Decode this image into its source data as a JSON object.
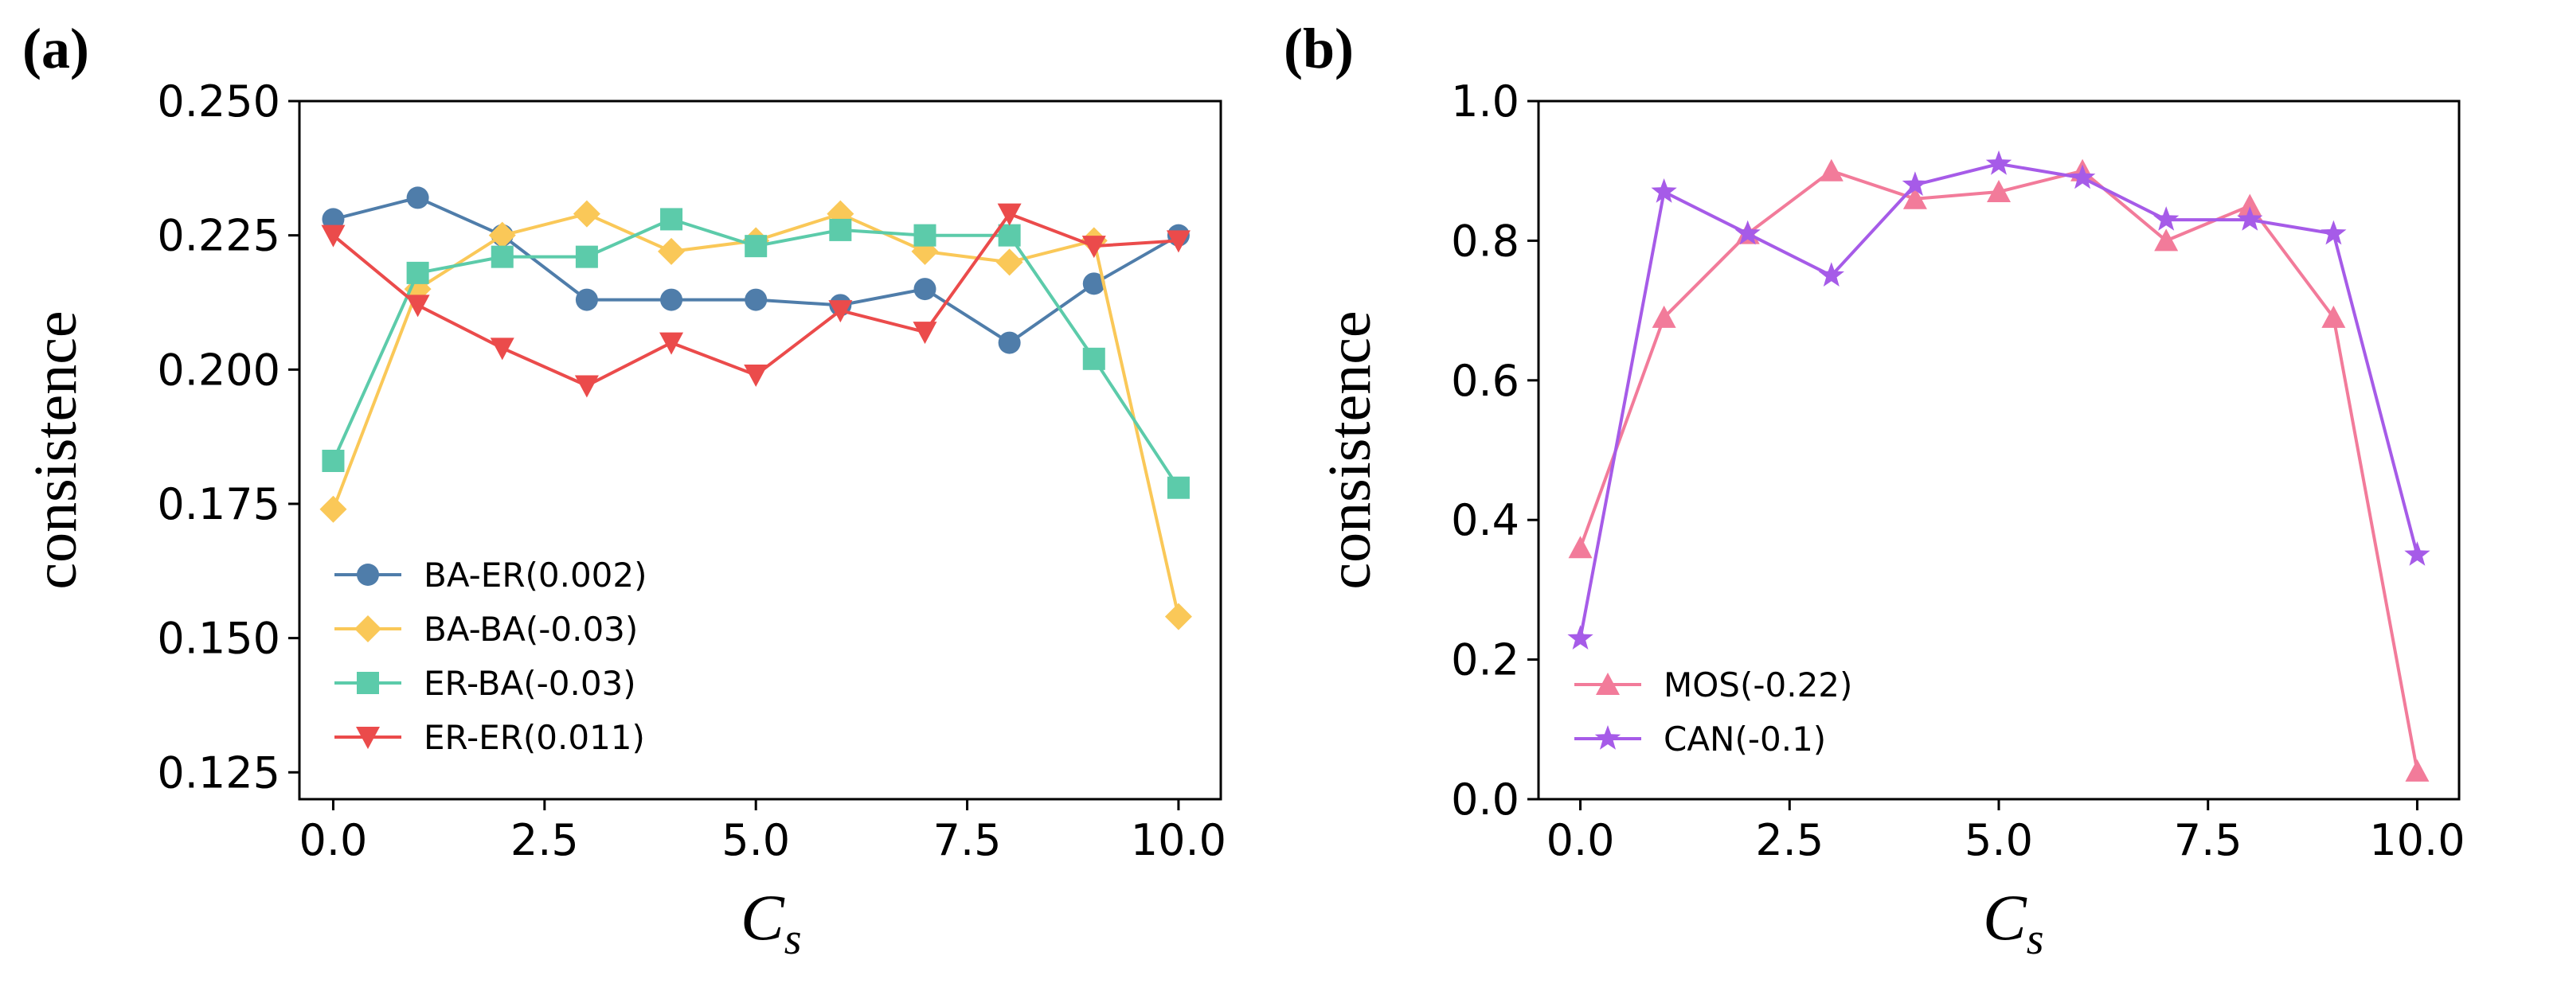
{
  "chart_data": [
    {
      "panel_label": "(a)",
      "type": "line",
      "ylabel": "consistence",
      "xlabel_main": "C",
      "xlabel_sub": "s",
      "xlim": [
        -0.4,
        10.5
      ],
      "ylim": [
        0.12,
        0.25
      ],
      "xticks": [
        0.0,
        2.5,
        5.0,
        7.5,
        10.0
      ],
      "xtick_labels": [
        "0.0",
        "2.5",
        "5.0",
        "7.5",
        "10.0"
      ],
      "yticks": [
        0.125,
        0.15,
        0.175,
        0.2,
        0.225,
        0.25
      ],
      "ytick_labels": [
        "0.125",
        "0.150",
        "0.175",
        "0.200",
        "0.225",
        "0.250"
      ],
      "legend_position": "lower-left",
      "x": [
        0,
        1,
        2,
        3,
        4,
        5,
        6,
        7,
        8,
        9,
        10
      ],
      "series": [
        {
          "name": "BA-ER(0.002)",
          "color": "#4f7daa",
          "marker": "circle",
          "values": [
            0.228,
            0.232,
            0.225,
            0.213,
            0.213,
            0.213,
            0.212,
            0.215,
            0.205,
            0.216,
            0.225
          ]
        },
        {
          "name": "BA-BA(-0.03)",
          "color": "#fac858",
          "marker": "diamond",
          "values": [
            0.174,
            0.215,
            0.225,
            0.229,
            0.222,
            0.224,
            0.229,
            0.222,
            0.22,
            0.224,
            0.154
          ]
        },
        {
          "name": "ER-BA(-0.03)",
          "color": "#5ccbaa",
          "marker": "square",
          "values": [
            0.183,
            0.218,
            0.221,
            0.221,
            0.228,
            0.223,
            0.226,
            0.225,
            0.225,
            0.202,
            0.178
          ]
        },
        {
          "name": "ER-ER(0.011)",
          "color": "#eb4b4b",
          "marker": "triangle-down",
          "values": [
            0.225,
            0.212,
            0.204,
            0.197,
            0.205,
            0.199,
            0.211,
            0.207,
            0.229,
            0.223,
            0.224
          ]
        }
      ]
    },
    {
      "panel_label": "(b)",
      "type": "line",
      "ylabel": "consistence",
      "xlabel_main": "C",
      "xlabel_sub": "s",
      "xlim": [
        -0.5,
        10.5
      ],
      "ylim": [
        0.0,
        1.0
      ],
      "xticks": [
        0.0,
        2.5,
        5.0,
        7.5,
        10.0
      ],
      "xtick_labels": [
        "0.0",
        "2.5",
        "5.0",
        "7.5",
        "10.0"
      ],
      "yticks": [
        0.0,
        0.2,
        0.4,
        0.6,
        0.8,
        1.0
      ],
      "ytick_labels": [
        "0.0",
        "0.2",
        "0.4",
        "0.6",
        "0.8",
        "1.0"
      ],
      "legend_position": "lower-left",
      "x": [
        0,
        1,
        2,
        3,
        4,
        5,
        6,
        7,
        8,
        9,
        10
      ],
      "series": [
        {
          "name": "MOS(-0.22)",
          "color": "#f27b9a",
          "marker": "triangle-up",
          "values": [
            0.36,
            0.69,
            0.81,
            0.9,
            0.86,
            0.87,
            0.9,
            0.8,
            0.85,
            0.69,
            0.04
          ]
        },
        {
          "name": "CAN(-0.1)",
          "color": "#a65be8",
          "marker": "star",
          "values": [
            0.23,
            0.87,
            0.81,
            0.75,
            0.88,
            0.91,
            0.89,
            0.83,
            0.83,
            0.81,
            0.35
          ]
        }
      ]
    }
  ]
}
